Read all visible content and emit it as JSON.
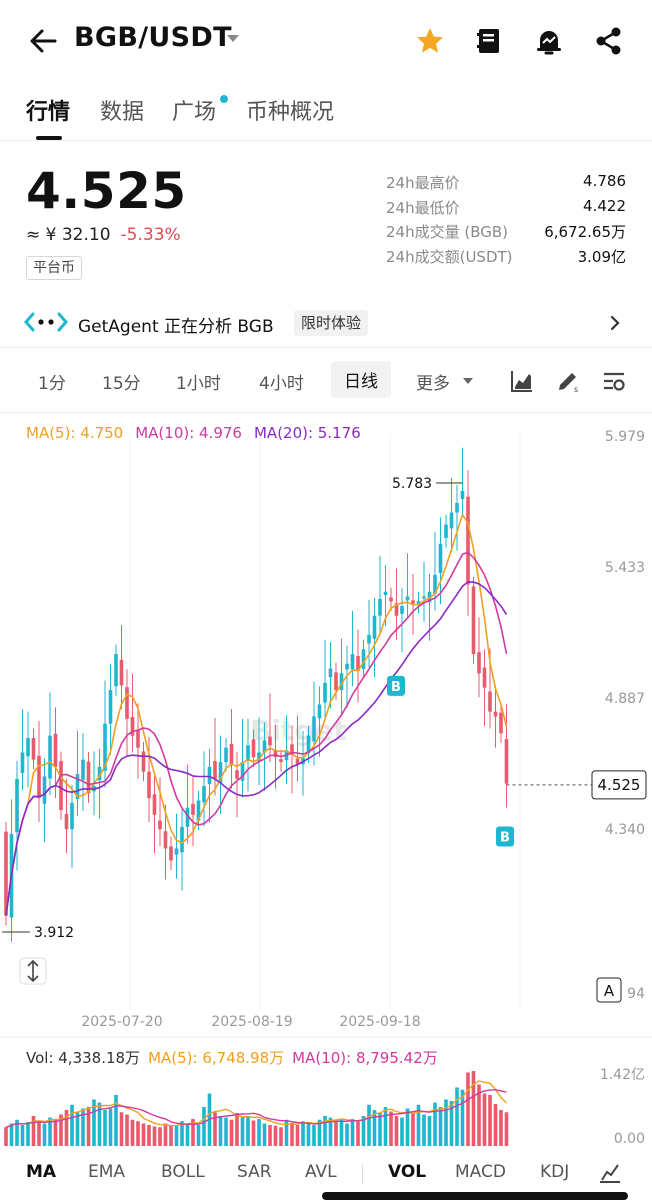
{
  "header": {
    "pair": "BGB/USDT",
    "icons": [
      "back-arrow-icon",
      "star-icon",
      "notebook-icon",
      "alert-bell-icon",
      "share-icon"
    ],
    "star_color": "#f5a623"
  },
  "tabs": [
    {
      "label": "行情",
      "active": true
    },
    {
      "label": "数据",
      "active": false
    },
    {
      "label": "广场",
      "active": false,
      "dot": true
    },
    {
      "label": "币种概况",
      "active": false
    }
  ],
  "price": {
    "last": "4.525",
    "cny": "≈ ¥ 32.10",
    "change": "-5.33%",
    "badge": "平台币"
  },
  "stats": [
    {
      "label": "24h最高价",
      "value": "4.786"
    },
    {
      "label": "24h最低价",
      "value": "4.422"
    },
    {
      "label": "24h成交量 (BGB)",
      "value": "6,672.65万"
    },
    {
      "label": "24h成交额(USDT)",
      "value": "3.09亿"
    }
  ],
  "agent": {
    "text": "GetAgent 正在分析 BGB",
    "badge": "限时体验"
  },
  "intervals": [
    {
      "label": "1分",
      "active": false
    },
    {
      "label": "15分",
      "active": false
    },
    {
      "label": "1小时",
      "active": false
    },
    {
      "label": "4小时",
      "active": false
    },
    {
      "label": "日线",
      "active": true
    },
    {
      "label": "更多",
      "active": false
    }
  ],
  "toolbar_icons": [
    "chart-type-icon",
    "draw-tool-icon",
    "chart-settings-icon"
  ],
  "ma_legend": {
    "ma5": "MA(5): 4.750",
    "ma10": "MA(10): 4.976",
    "ma20": "MA(20): 5.176"
  },
  "chart_data": {
    "type": "candlestick",
    "price_axis_ticks": [
      "5.979",
      "5.433",
      "4.887",
      "4.340",
      "94"
    ],
    "date_ticks": [
      "2025-07-20",
      "2025-08-19",
      "2025-09-18"
    ],
    "high_label": "5.783",
    "low_label": "3.912",
    "current_label": "4.525",
    "markers": [
      "B",
      "B"
    ],
    "axis_mode_button": "A",
    "colors": {
      "up": "#1fb6d0",
      "down": "#e85a6c",
      "ma5": "#f0a020",
      "ma10": "#d23aa0",
      "ma20": "#8a2ac8"
    },
    "closes": [
      3.98,
      4.32,
      4.55,
      4.66,
      4.72,
      4.63,
      4.47,
      4.56,
      4.73,
      4.6,
      4.42,
      4.34,
      4.45,
      4.57,
      4.63,
      4.49,
      4.52,
      4.6,
      4.78,
      4.92,
      5.07,
      4.94,
      4.8,
      4.73,
      4.68,
      4.58,
      4.47,
      4.4,
      4.34,
      4.26,
      4.21,
      4.26,
      4.35,
      4.43,
      4.4,
      4.46,
      4.52,
      4.6,
      4.55,
      4.62,
      4.68,
      4.61,
      4.55,
      4.62,
      4.69,
      4.64,
      4.66,
      4.71,
      4.69,
      4.64,
      4.62,
      4.67,
      4.65,
      4.61,
      4.64,
      4.73,
      4.81,
      4.86,
      4.95,
      5.01,
      4.92,
      4.99,
      5.03,
      5.07,
      5.0,
      5.09,
      5.15,
      5.23,
      5.3,
      5.33,
      5.29,
      5.23,
      5.27,
      5.31,
      5.28,
      5.29,
      5.31,
      5.33,
      5.4,
      5.53,
      5.61,
      5.66,
      5.7,
      5.75,
      5.36,
      5.07,
      4.99,
      4.93,
      4.83,
      4.81,
      4.74,
      4.53
    ],
    "volume_axis_ticks": [
      "1.42亿",
      "0.00"
    ],
    "volumes": [
      0.25,
      0.3,
      0.35,
      0.28,
      0.32,
      0.4,
      0.33,
      0.3,
      0.38,
      0.36,
      0.42,
      0.48,
      0.55,
      0.45,
      0.5,
      0.52,
      0.62,
      0.58,
      0.48,
      0.5,
      0.68,
      0.45,
      0.42,
      0.35,
      0.33,
      0.3,
      0.28,
      0.26,
      0.25,
      0.3,
      0.28,
      0.27,
      0.33,
      0.3,
      0.36,
      0.28,
      0.52,
      0.7,
      0.45,
      0.4,
      0.38,
      0.35,
      0.44,
      0.38,
      0.4,
      0.34,
      0.36,
      0.3,
      0.28,
      0.27,
      0.25,
      0.35,
      0.31,
      0.28,
      0.33,
      0.3,
      0.28,
      0.35,
      0.4,
      0.38,
      0.32,
      0.35,
      0.3,
      0.36,
      0.34,
      0.4,
      0.55,
      0.48,
      0.44,
      0.52,
      0.46,
      0.4,
      0.38,
      0.5,
      0.44,
      0.55,
      0.42,
      0.4,
      0.58,
      0.52,
      0.62,
      0.6,
      0.78,
      0.75,
      0.98,
      1.0,
      0.82,
      0.7,
      0.68,
      0.56,
      0.48,
      0.45
    ]
  },
  "vol_legend": {
    "vol": "Vol: 4,338.18万",
    "ma5": "MA(5): 6,748.98万",
    "ma10": "MA(10): 8,795.42万"
  },
  "indicators": [
    {
      "label": "MA",
      "active": true
    },
    {
      "label": "EMA",
      "active": false
    },
    {
      "label": "BOLL",
      "active": false
    },
    {
      "label": "SAR",
      "active": false
    },
    {
      "label": "AVL",
      "active": false
    },
    {
      "label": "VOL",
      "active": true
    },
    {
      "label": "MACD",
      "active": false
    },
    {
      "label": "KDJ",
      "active": false
    }
  ]
}
